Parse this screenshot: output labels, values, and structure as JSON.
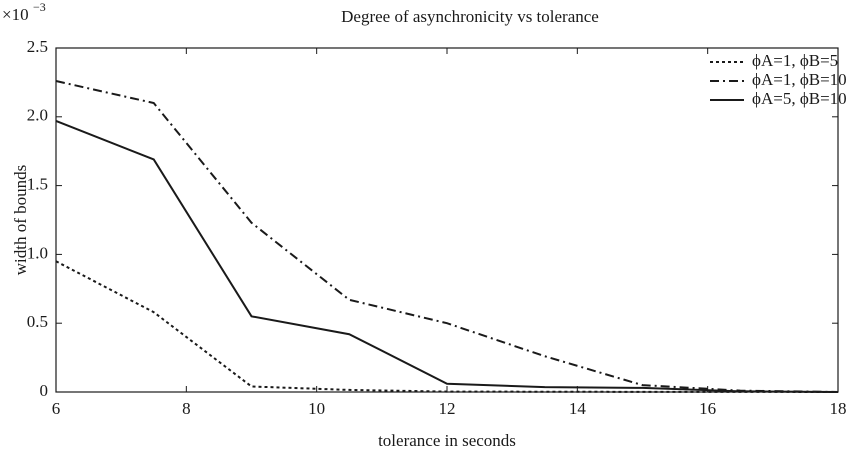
{
  "chart_data": {
    "type": "line",
    "title": "Degree of asynchronicity vs tolerance",
    "x_label": "tolerance in seconds",
    "y_label": "width of bounds",
    "y_scale_base": "×10",
    "y_scale_exponent": "−3",
    "x": [
      6,
      7.5,
      9,
      10.5,
      12,
      13.5,
      15,
      16.5,
      18
    ],
    "series": [
      {
        "name": "ϕA=1, ϕB=5",
        "color": "#1a1a1a",
        "linestyle": "dotted",
        "values": [
          0.95,
          0.58,
          0.04,
          0.015,
          0.003,
          0.002,
          0.001,
          0.001,
          0
        ]
      },
      {
        "name": "ϕA=1, ϕB=10",
        "color": "#1a1a1a",
        "linestyle": "dashdot",
        "values": [
          2.26,
          2.1,
          1.23,
          0.67,
          0.5,
          0.26,
          0.05,
          0.01,
          0
        ]
      },
      {
        "name": "ϕA=5, ϕB=10",
        "color": "#1a1a1a",
        "linestyle": "solid",
        "values": [
          1.97,
          1.69,
          0.55,
          0.42,
          0.06,
          0.035,
          0.03,
          0.005,
          0
        ]
      }
    ],
    "xlim": [
      6,
      18
    ],
    "xticks": [
      6,
      8,
      10,
      12,
      14,
      16,
      18
    ],
    "ylim": [
      0,
      2.5
    ],
    "yticks": [
      0,
      0.5,
      {
        "value": 1,
        "label": "1.0"
      },
      1.5,
      {
        "value": 2,
        "label": "2.0"
      },
      2.5
    ],
    "grid": false,
    "legend": "upper right"
  }
}
